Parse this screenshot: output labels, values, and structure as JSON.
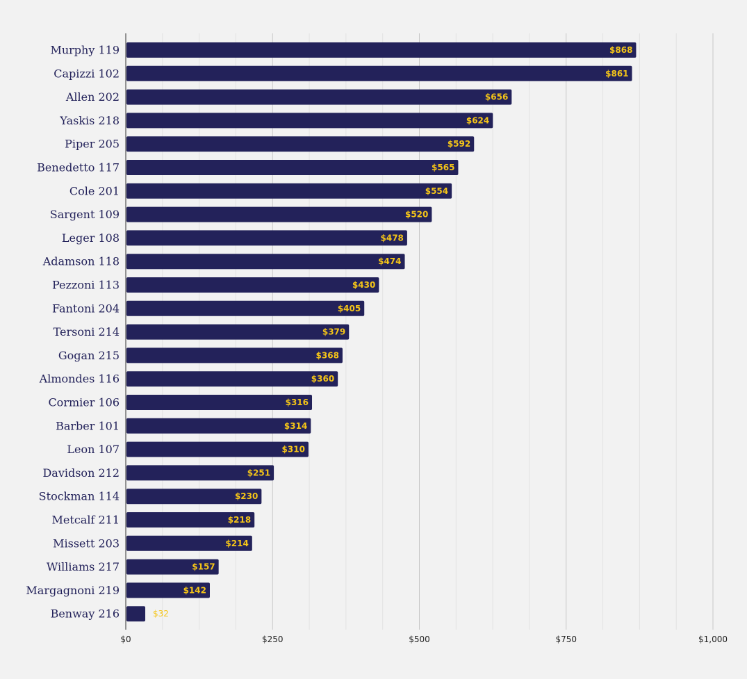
{
  "chart_data": {
    "type": "bar",
    "orientation": "horizontal",
    "title": "",
    "xlabel": "",
    "ylabel": "",
    "categories": [
      "Murphy 119",
      "Capizzi 102",
      "Allen 202",
      "Yaskis 218",
      "Piper 205",
      "Benedetto 117",
      "Cole 201",
      "Sargent 109",
      "Leger 108",
      "Adamson 118",
      "Pezzoni 113",
      "Fantoni 204",
      "Tersoni 214",
      "Gogan 215",
      "Almondes 116",
      "Cormier 106",
      "Barber 101",
      "Leon 107",
      "Davidson 212",
      "Stockman 114",
      "Metcalf 211",
      "Missett 203",
      "Williams 217",
      "Margagnoni 219",
      "Benway 216"
    ],
    "values": [
      868,
      861,
      656,
      624,
      592,
      565,
      554,
      520,
      478,
      474,
      430,
      405,
      379,
      368,
      360,
      316,
      314,
      310,
      251,
      230,
      218,
      214,
      157,
      142,
      32
    ],
    "value_labels": [
      "$868",
      "$861",
      "$656",
      "$624",
      "$592",
      "$565",
      "$554",
      "$520",
      "$478",
      "$474",
      "$430",
      "$405",
      "$379",
      "$368",
      "$360",
      "$316",
      "$314",
      "$310",
      "$251",
      "$230",
      "$218",
      "$214",
      "$157",
      "$142",
      "$32"
    ],
    "xlim": [
      0,
      1000
    ],
    "x_ticks": [
      0,
      250,
      500,
      750,
      1000
    ],
    "x_tick_labels": [
      "$0",
      "$250",
      "$500",
      "$750",
      "$1,000"
    ],
    "grid": "vertical",
    "legend": "none",
    "colors": {
      "bar": "#23225a",
      "value_label": "#f5c518",
      "category_label": "#23225a",
      "grid_major": "#c8c8c8",
      "grid_minor": "#e2e2e2",
      "background": "#f2f2f2"
    }
  }
}
